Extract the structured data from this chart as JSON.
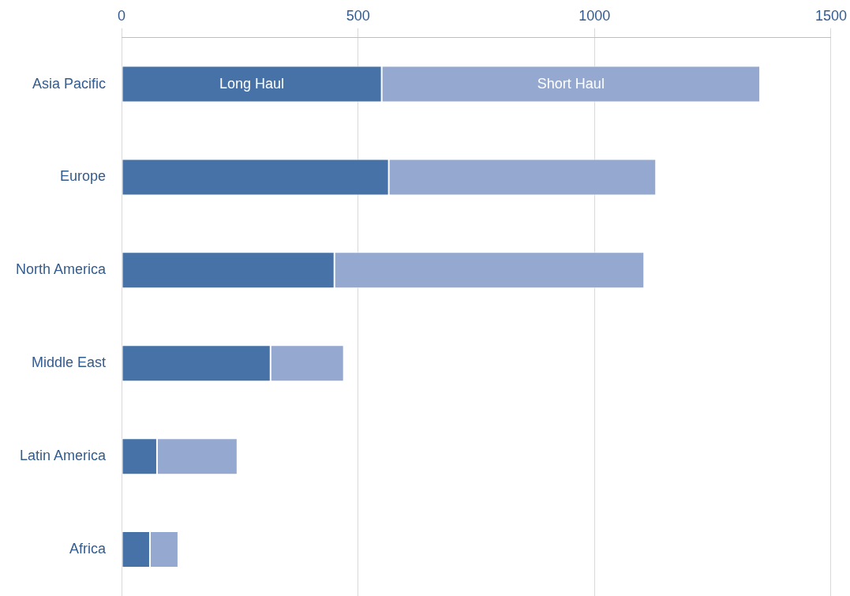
{
  "chart_data": {
    "type": "bar",
    "orientation": "horizontal",
    "stacked": true,
    "categories": [
      "Asia Pacific",
      "Europe",
      "North America",
      "Middle East",
      "Latin America",
      "Africa"
    ],
    "series": [
      {
        "name": "Long Haul",
        "color": "#4672a8",
        "values": [
          550,
          565,
          450,
          315,
          75,
          60
        ]
      },
      {
        "name": "Short Haul",
        "color": "#95a9d0",
        "values": [
          800,
          565,
          655,
          155,
          170,
          60
        ]
      }
    ],
    "xlim": [
      0,
      1500
    ],
    "xticks": [
      0,
      500,
      1000,
      1500
    ],
    "grid": "x"
  }
}
